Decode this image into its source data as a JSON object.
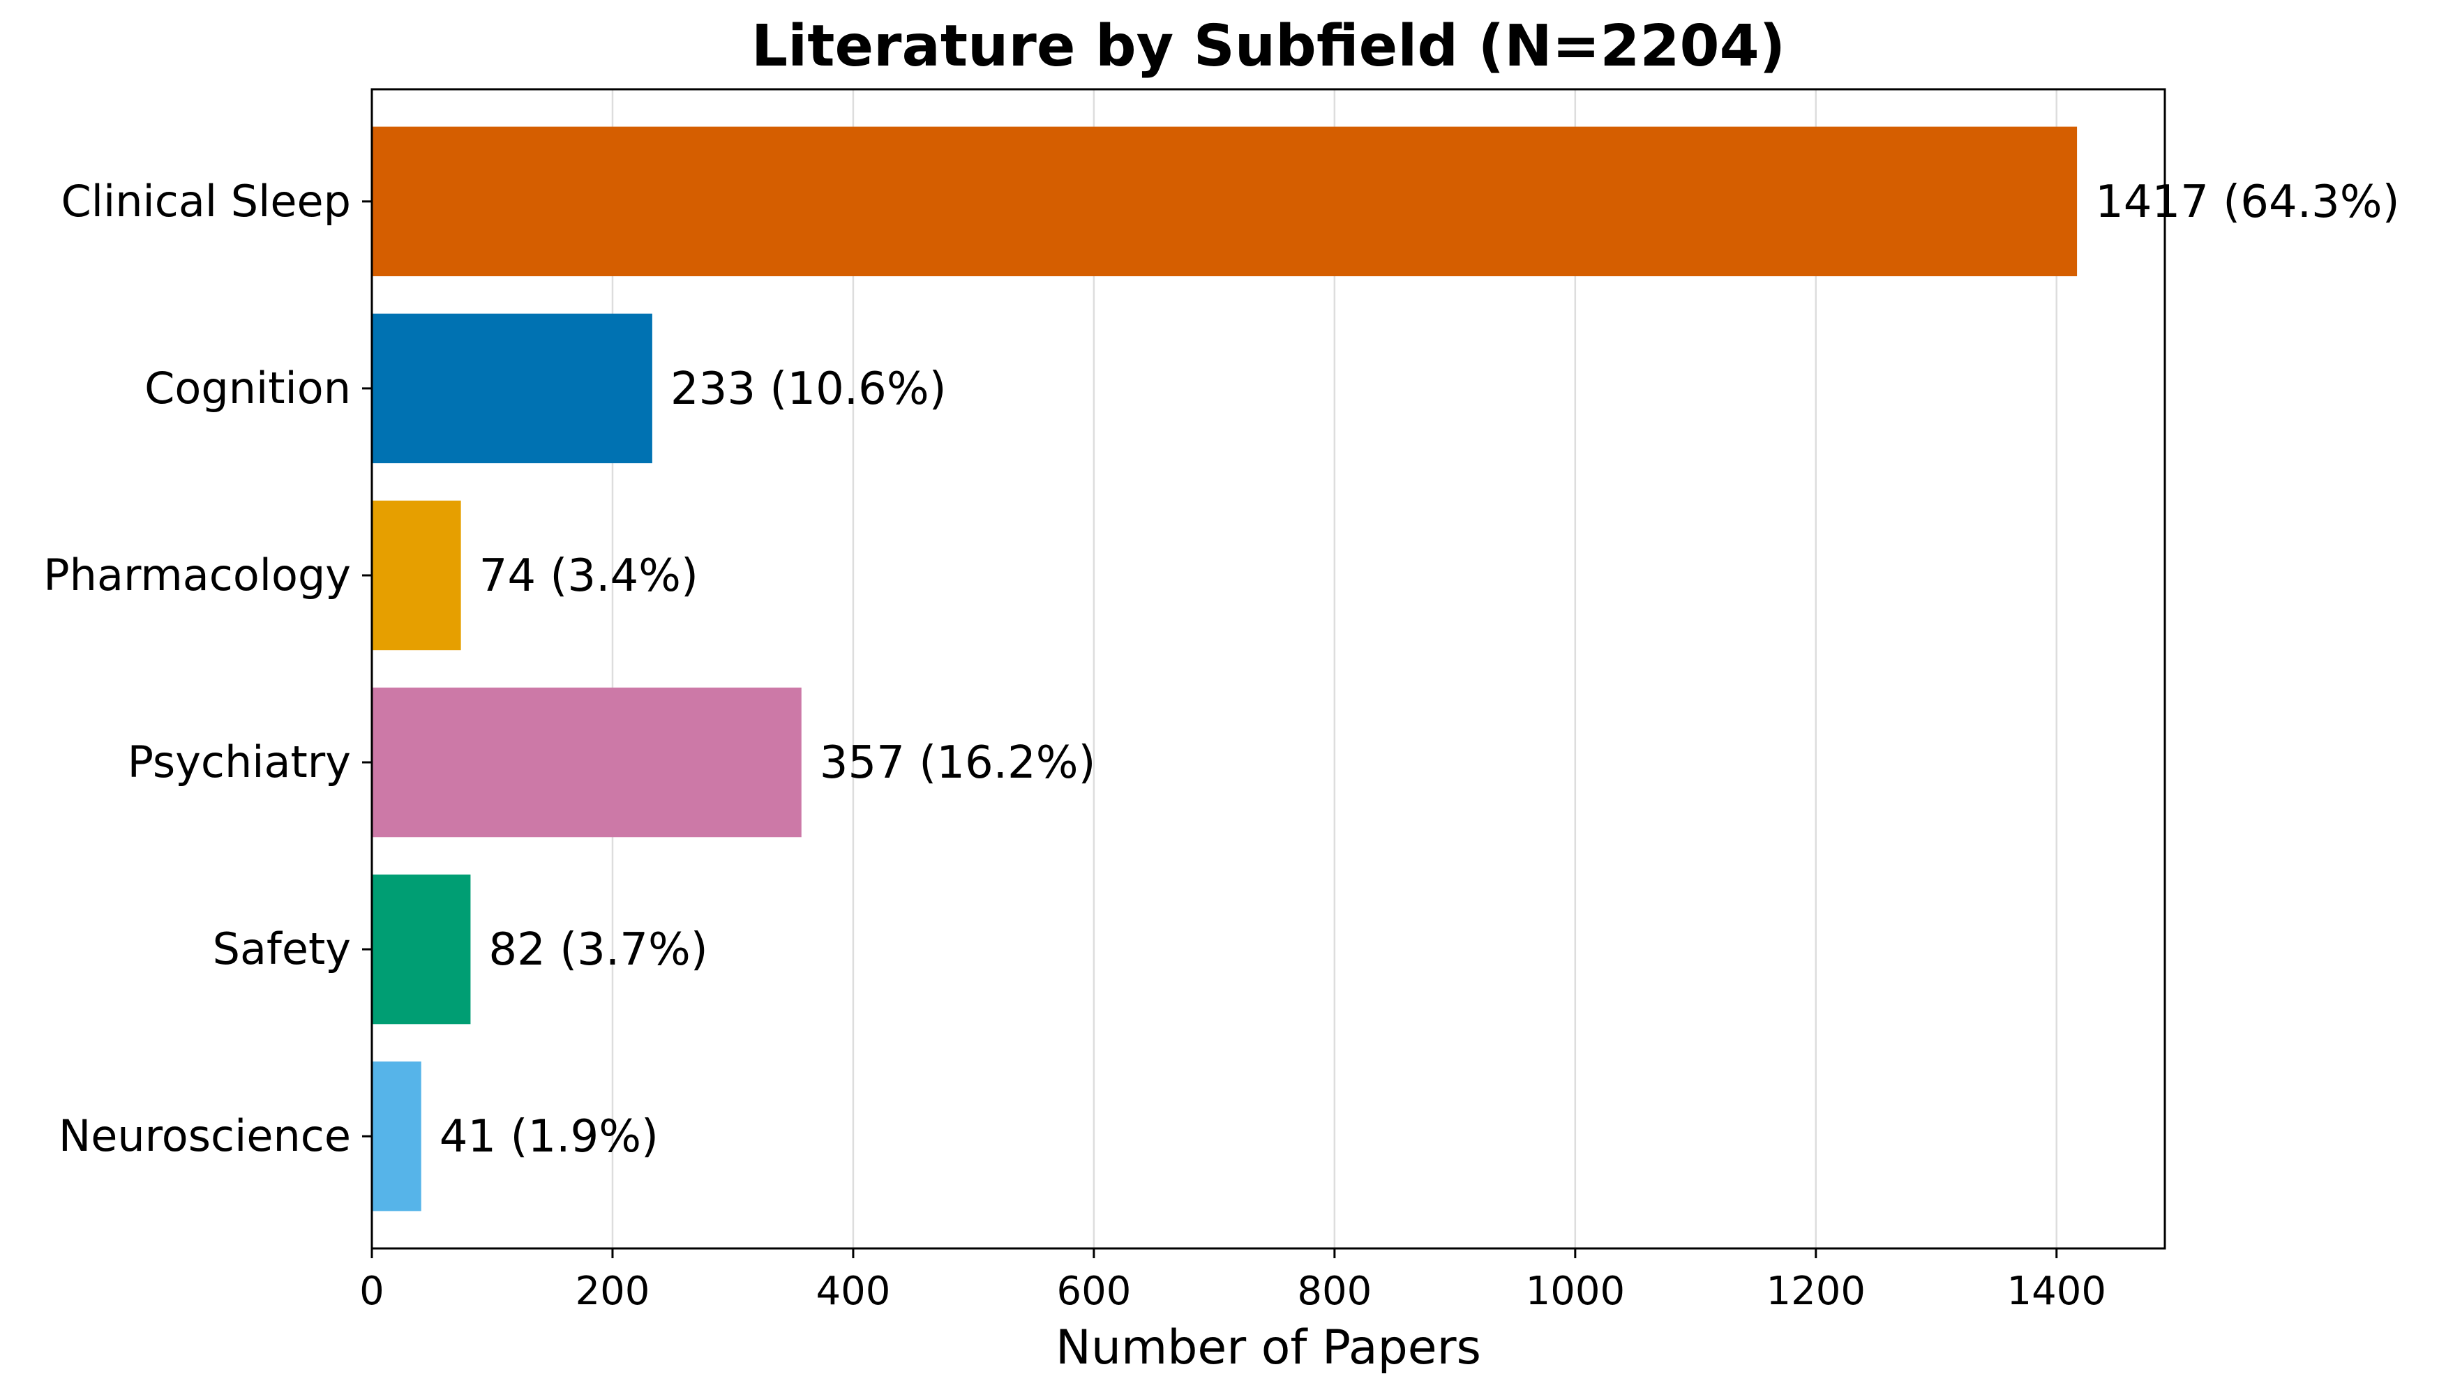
{
  "chart_data": {
    "type": "bar",
    "orientation": "horizontal",
    "title": "Literature by Subfield (N=2204)",
    "xlabel": "Number of Papers",
    "ylabel": "",
    "xlim": [
      0,
      1490
    ],
    "xticks": [
      0,
      200,
      400,
      600,
      800,
      1000,
      1200,
      1400
    ],
    "grid": "vertical",
    "categories": [
      "Clinical Sleep",
      "Cognition",
      "Pharmacology",
      "Psychiatry",
      "Safety",
      "Neuroscience"
    ],
    "values": [
      1417,
      233,
      74,
      357,
      82,
      41
    ],
    "data_labels": [
      "1417 (64.3%)",
      "233 (10.6%)",
      "74 (3.4%)",
      "357 (16.2%)",
      "82 (3.7%)",
      "41 (1.9%)"
    ],
    "colors": [
      "#D55E00",
      "#0072B2",
      "#E69F00",
      "#CC79A7",
      "#009E73",
      "#56B4E9"
    ]
  }
}
